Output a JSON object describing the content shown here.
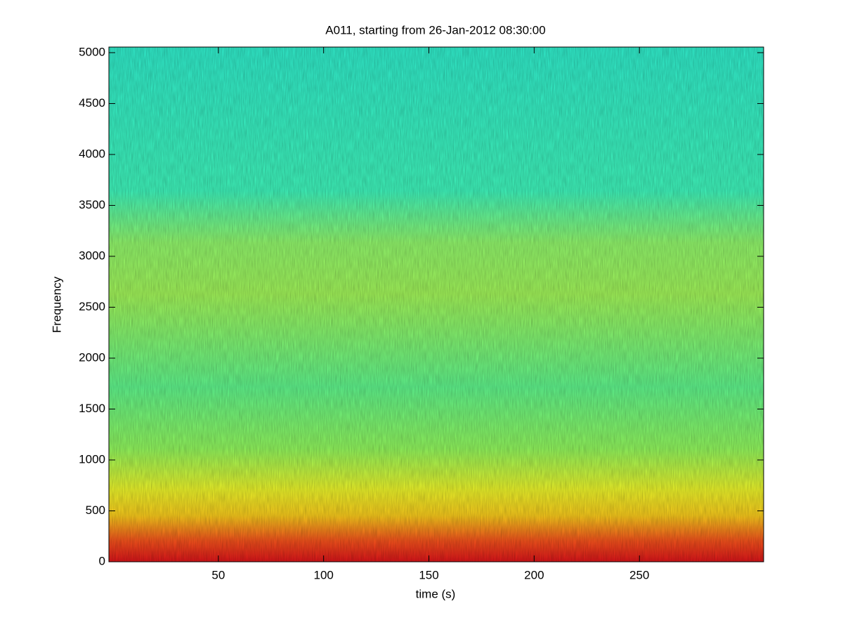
{
  "chart_data": {
    "type": "spectrogram",
    "title": "A011, starting from 26-Jan-2012 08:30:00",
    "xlabel": "time (s)",
    "ylabel": "Frequency",
    "xlim": [
      -2,
      309
    ],
    "ylim": [
      0,
      5055
    ],
    "xticks": [
      50,
      100,
      150,
      200,
      250
    ],
    "yticks": [
      0,
      500,
      1000,
      1500,
      2000,
      2500,
      3000,
      3500,
      4000,
      4500,
      5000
    ],
    "colormap": "jet"
  }
}
